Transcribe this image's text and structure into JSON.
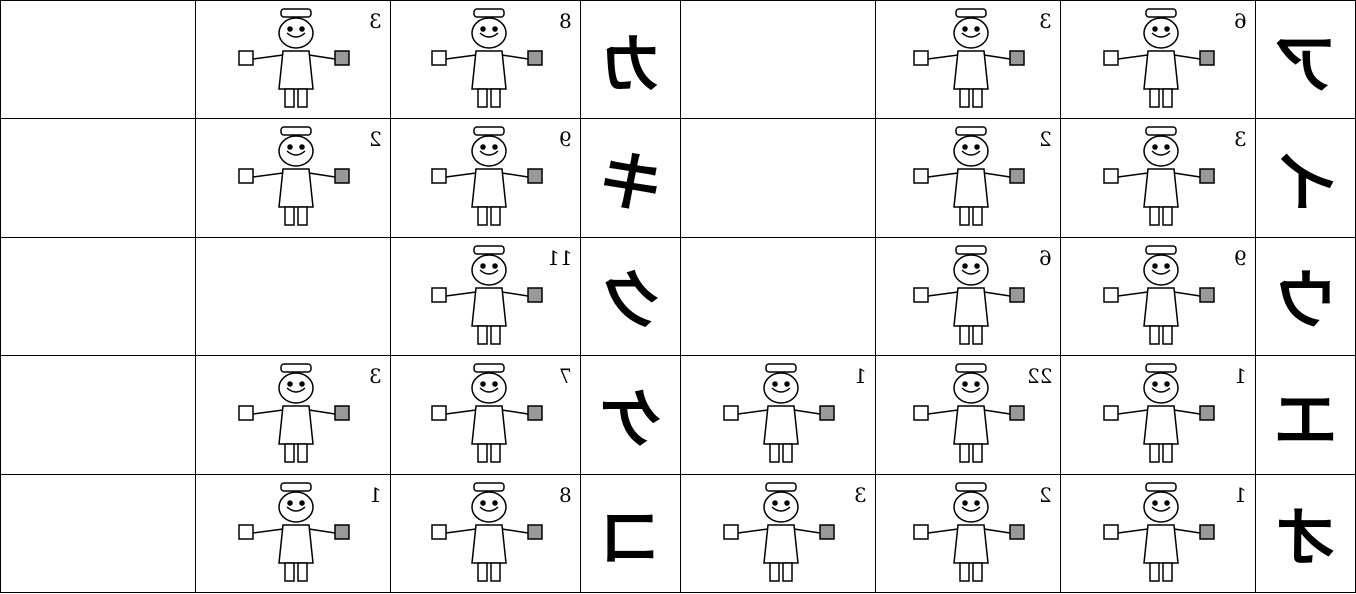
{
  "rows": [
    {
      "left": {
        "kana": "カ",
        "signs": [
          8,
          3
        ]
      },
      "right": {
        "kana": "ア",
        "signs": [
          6,
          3
        ]
      }
    },
    {
      "left": {
        "kana": "キ",
        "signs": [
          9,
          2
        ]
      },
      "right": {
        "kana": "イ",
        "signs": [
          3,
          2
        ]
      }
    },
    {
      "left": {
        "kana": "ク",
        "signs": [
          11
        ]
      },
      "right": {
        "kana": "ウ",
        "signs": [
          9,
          6
        ]
      }
    },
    {
      "left": {
        "kana": "ケ",
        "signs": [
          7,
          3
        ]
      },
      "right": {
        "kana": "エ",
        "signs": [
          1,
          22,
          1
        ]
      }
    },
    {
      "left": {
        "kana": "コ",
        "signs": [
          8,
          1
        ]
      },
      "right": {
        "kana": "オ",
        "signs": [
          1,
          2,
          3
        ]
      }
    }
  ]
}
